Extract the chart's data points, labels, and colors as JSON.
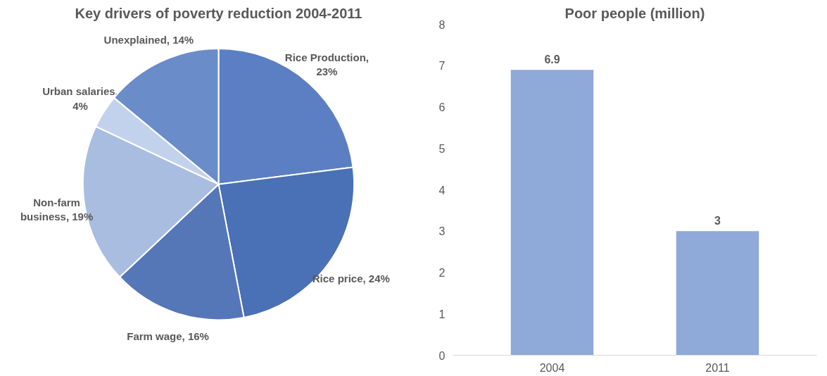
{
  "chart_data": [
    {
      "type": "pie",
      "title": "Key drivers of poverty reduction 2004-2011",
      "categories": [
        "Rice Production, 23%",
        "Rice price, 24%",
        "Farm wage, 16%",
        "Non-farm business, 19%",
        "Urban salaries, 4%",
        "Unexplained, 14%"
      ],
      "values": [
        23,
        24,
        16,
        19,
        4,
        14
      ],
      "colors": [
        "#5b7fc2",
        "#4a70b5",
        "#5577b8",
        "#a9bde0",
        "#c3d2ec",
        "#6a8cc8"
      ]
    },
    {
      "type": "bar",
      "title": "Poor people (million)",
      "categories": [
        "2004",
        "2011"
      ],
      "values": [
        6.9,
        3
      ],
      "color": "#8fa9d8",
      "ylim": [
        0,
        8
      ],
      "yticks": [
        0,
        1,
        2,
        3,
        4,
        5,
        6,
        7,
        8
      ],
      "data_labels": true,
      "grid": false
    }
  ]
}
